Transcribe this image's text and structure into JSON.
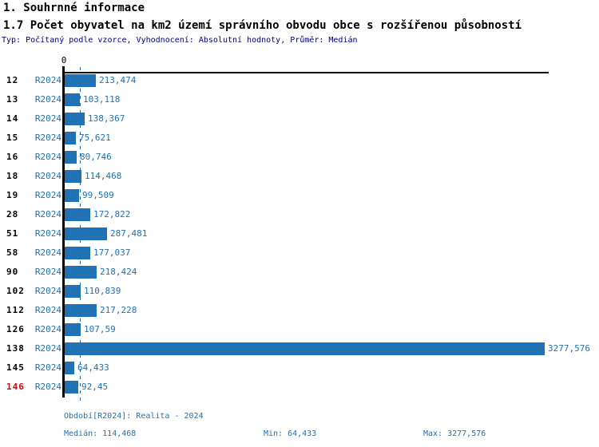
{
  "header": {
    "section_title": "1. Souhrnné informace",
    "indicator_title": "1.7 Počet obyvatel na km2 území správního obvodu obce s rozšířenou působností",
    "subtitle": "Typ: Počítaný podle vzorce, Vyhodnocení: Absolutní hodnoty, Průměr: Medián"
  },
  "chart_data": {
    "type": "bar",
    "orientation": "horizontal",
    "title": "1.7 Počet obyvatel na km2 území správního obvodu obce s rozšířenou působností",
    "series_label": "R2024",
    "categories": [
      "12",
      "13",
      "14",
      "15",
      "16",
      "18",
      "19",
      "28",
      "51",
      "58",
      "90",
      "102",
      "112",
      "126",
      "138",
      "145",
      "146"
    ],
    "values": [
      213.474,
      103.118,
      138.367,
      75.621,
      80.746,
      114.468,
      99.509,
      172.822,
      287.481,
      177.037,
      218.424,
      110.839,
      217.228,
      107.59,
      3277.576,
      64.433,
      92.45
    ],
    "value_labels": [
      "213,474",
      "103,118",
      "138,367",
      "75,621",
      "80,746",
      "114,468",
      "99,509",
      "172,822",
      "287,481",
      "177,037",
      "218,424",
      "110,839",
      "217,228",
      "107,59",
      "3277,576",
      "64,433",
      "92,45"
    ],
    "highlighted_categories": [
      "146"
    ],
    "zero_tick_label": "0",
    "xlim": [
      0,
      3315
    ],
    "median_line_value": 114.468,
    "grid": false,
    "legend": false,
    "colors": {
      "bar": "#2171B5",
      "value_text": "#2171B5",
      "category_text": "#000000",
      "highlight_text": "#E00000",
      "axis": "#000000",
      "median_line": "#2171B5"
    }
  },
  "footer": {
    "period_line": "Období[R2024]: Realita - 2024",
    "median_label": "Medián: 114,468",
    "min_label": "Min: 64,433",
    "max_label": "Max: 3277,576"
  }
}
